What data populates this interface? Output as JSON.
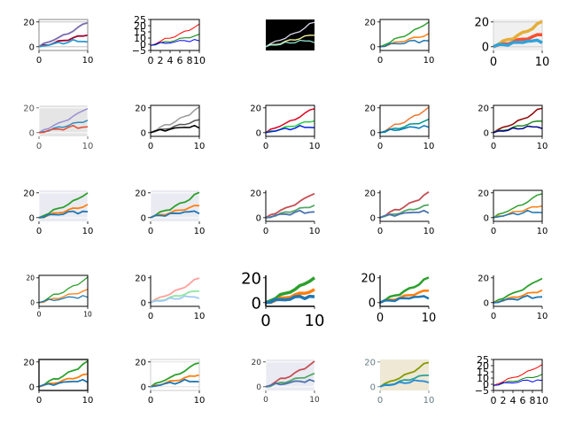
{
  "chart_data": {
    "type": "line",
    "grid_rows": 5,
    "grid_cols": 5,
    "x": [
      0,
      1,
      2,
      3,
      4,
      5,
      6,
      7,
      8,
      9,
      10
    ],
    "series_values": {
      "high": [
        0,
        2,
        4,
        6,
        7,
        9,
        11,
        13,
        15,
        18,
        20
      ],
      "mid": [
        0,
        1,
        2,
        3,
        4,
        5,
        6,
        7,
        8,
        9,
        10
      ],
      "low": [
        0,
        1,
        2,
        2,
        3,
        3,
        4,
        5,
        4,
        5,
        4
      ]
    },
    "subplots": [
      {
        "style": "classic-purple",
        "xticks": [
          "0",
          "10"
        ],
        "yticks": [
          "0",
          "20"
        ],
        "xlim": [
          0,
          10
        ],
        "ylim": [
          -3,
          22
        ]
      },
      {
        "style": "classic-rgb",
        "xticks": [
          "0",
          "2",
          "4",
          "6",
          "8",
          "10"
        ],
        "yticks": [
          "−5",
          "0",
          "10",
          "15",
          "20",
          "25"
        ],
        "xlim": [
          0,
          10
        ],
        "ylim": [
          -5,
          25
        ]
      },
      {
        "style": "dark",
        "xticks": [],
        "yticks": [],
        "xlim": [
          0,
          10
        ],
        "ylim": [
          -3,
          22
        ]
      },
      {
        "style": "default",
        "xticks": [
          "0",
          "10"
        ],
        "yticks": [
          "0",
          "20"
        ],
        "xlim": [
          0,
          10
        ],
        "ylim": [
          -3,
          22
        ]
      },
      {
        "style": "fivethirtyeight",
        "xticks": [
          "0",
          "10"
        ],
        "yticks": [
          "0",
          "20"
        ],
        "xlim": [
          0,
          10
        ],
        "ylim": [
          -3,
          22
        ]
      },
      {
        "style": "ggplot-gray",
        "xticks": [
          "0",
          "10"
        ],
        "yticks": [
          "0",
          "20"
        ],
        "xlim": [
          0,
          10
        ],
        "ylim": [
          -3,
          22
        ]
      },
      {
        "style": "grayscale",
        "xticks": [
          "0",
          "10"
        ],
        "yticks": [
          "0",
          "20"
        ],
        "xlim": [
          0,
          10
        ],
        "ylim": [
          -3,
          22
        ]
      },
      {
        "style": "bright",
        "xticks": [
          "0",
          "10"
        ],
        "yticks": [
          "0",
          "20"
        ],
        "xlim": [
          0,
          10
        ],
        "ylim": [
          -3,
          22
        ]
      },
      {
        "style": "orange-teal",
        "xticks": [
          "0",
          "10"
        ],
        "yticks": [
          "0",
          "20"
        ],
        "xlim": [
          0,
          10
        ],
        "ylim": [
          -3,
          22
        ]
      },
      {
        "style": "dark-red",
        "xticks": [
          "0",
          "10"
        ],
        "yticks": [
          "0",
          "20"
        ],
        "xlim": [
          0,
          10
        ],
        "ylim": [
          -3,
          22
        ]
      },
      {
        "style": "seaborn-gray",
        "xticks": [
          "0",
          "10"
        ],
        "yticks": [
          "0",
          "20"
        ],
        "xlim": [
          0,
          10
        ],
        "ylim": [
          -3,
          22
        ]
      },
      {
        "style": "seaborn-gray",
        "xticks": [
          "0",
          "10"
        ],
        "yticks": [
          "0",
          "20"
        ],
        "xlim": [
          0,
          10
        ],
        "ylim": [
          -3,
          22
        ]
      },
      {
        "style": "muted",
        "xticks": [
          "0",
          "10"
        ],
        "yticks": [
          "0",
          "20"
        ],
        "xlim": [
          0,
          10
        ],
        "ylim": [
          -3,
          22
        ]
      },
      {
        "style": "muted",
        "xticks": [
          "0",
          "10"
        ],
        "yticks": [
          "0",
          "20"
        ],
        "xlim": [
          0,
          10
        ],
        "ylim": [
          -3,
          22
        ]
      },
      {
        "style": "default",
        "xticks": [
          "0",
          "10"
        ],
        "yticks": [
          "0",
          "20"
        ],
        "xlim": [
          0,
          10
        ],
        "ylim": [
          -3,
          22
        ]
      },
      {
        "style": "small",
        "xticks": [
          "0",
          "10"
        ],
        "yticks": [
          "0",
          "20"
        ],
        "xlim": [
          0,
          10
        ],
        "ylim": [
          -3,
          22
        ]
      },
      {
        "style": "pastel",
        "xticks": [
          "0",
          "10"
        ],
        "yticks": [
          "0",
          "20"
        ],
        "xlim": [
          0,
          10
        ],
        "ylim": [
          -3,
          22
        ]
      },
      {
        "style": "poster",
        "xticks": [
          "0",
          "10"
        ],
        "yticks": [
          "0",
          "20"
        ],
        "xlim": [
          0,
          10
        ],
        "ylim": [
          -3,
          22
        ]
      },
      {
        "style": "talk",
        "xticks": [
          "0",
          "10"
        ],
        "yticks": [
          "0",
          "20"
        ],
        "xlim": [
          0,
          10
        ],
        "ylim": [
          -3,
          22
        ]
      },
      {
        "style": "ticks",
        "xticks": [
          "0",
          "10"
        ],
        "yticks": [
          "0",
          "20"
        ],
        "xlim": [
          0,
          10
        ],
        "ylim": [
          -3,
          22
        ]
      },
      {
        "style": "white",
        "xticks": [
          "0",
          "10"
        ],
        "yticks": [
          "0",
          "20"
        ],
        "xlim": [
          0,
          10
        ],
        "ylim": [
          -3,
          22
        ]
      },
      {
        "style": "whitegrid",
        "xticks": [
          "0",
          "10"
        ],
        "yticks": [
          "0",
          "20"
        ],
        "xlim": [
          0,
          10
        ],
        "ylim": [
          -3,
          22
        ]
      },
      {
        "style": "muted-dark",
        "xticks": [
          "0",
          "10"
        ],
        "yticks": [
          "0",
          "20"
        ],
        "xlim": [
          0,
          10
        ],
        "ylim": [
          -3,
          22
        ]
      },
      {
        "style": "solarize",
        "xticks": [
          "0",
          "10"
        ],
        "yticks": [
          "0",
          "20"
        ],
        "xlim": [
          0,
          10
        ],
        "ylim": [
          -3,
          22
        ]
      },
      {
        "style": "classic-rgb",
        "xticks": [
          "0",
          "2",
          "4",
          "6",
          "8",
          "10"
        ],
        "yticks": [
          "−5",
          "0",
          "10",
          "15",
          "20",
          "25"
        ],
        "xlim": [
          0,
          10
        ],
        "ylim": [
          -5,
          25
        ]
      }
    ],
    "palettes": {
      "default": [
        "#2ca02c",
        "#ff7f0e",
        "#1f77b4"
      ],
      "classic-purple": [
        "#7b6bb0",
        "#a00030",
        "#2a9bd2"
      ],
      "classic-rgb": [
        "#ff0000",
        "#008000",
        "#0000ff"
      ],
      "dark": [
        "#d8d8f0",
        "#ffffa0",
        "#90e0d0"
      ],
      "fivethirtyeight": [
        "#e5ae38",
        "#fc4f30",
        "#30a2da"
      ],
      "ggplot-gray": [
        "#988ed5",
        "#348abd",
        "#e24a33"
      ],
      "grayscale": [
        "#999999",
        "#555555",
        "#000000"
      ],
      "bright": [
        "#e00020",
        "#20d040",
        "#0020e0"
      ],
      "orange-teal": [
        "#ee7733",
        "#009988",
        "#0077bb"
      ],
      "dark-red": [
        "#8b0000",
        "#228b22",
        "#00008b"
      ],
      "seaborn-gray": [
        "#2ca02c",
        "#ff7f0e",
        "#1f77b4"
      ],
      "muted": [
        "#c44e52",
        "#55a868",
        "#4c72b0"
      ],
      "small": [
        "#2ca02c",
        "#ff7f0e",
        "#1f77b4"
      ],
      "pastel": [
        "#ff9f9b",
        "#8de5a1",
        "#a1c9f4"
      ],
      "poster": [
        "#2ca02c",
        "#ff7f0e",
        "#1f77b4"
      ],
      "talk": [
        "#2ca02c",
        "#ff7f0e",
        "#1f77b4"
      ],
      "ticks": [
        "#2ca02c",
        "#ff7f0e",
        "#1f77b4"
      ],
      "white": [
        "#2ca02c",
        "#ff7f0e",
        "#1f77b4"
      ],
      "whitegrid": [
        "#2ca02c",
        "#ff7f0e",
        "#1f77b4"
      ],
      "muted-dark": [
        "#c44e52",
        "#55a868",
        "#4c72b0"
      ],
      "solarize": [
        "#859900",
        "#2aa198",
        "#268bd2"
      ]
    }
  }
}
